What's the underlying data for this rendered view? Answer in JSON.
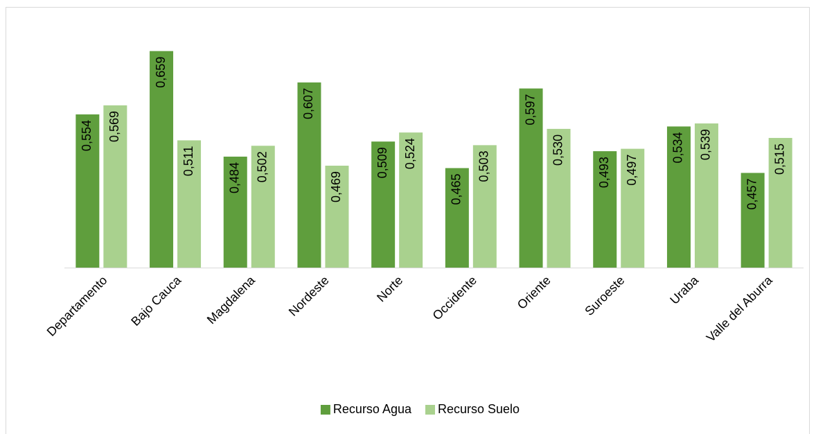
{
  "chart_data": {
    "type": "bar",
    "categories": [
      "Departamento",
      "Bajo Cauca",
      "Magdalena",
      "Nordeste",
      "Norte",
      "Occidente",
      "Oriente",
      "Suroeste",
      "Uraba",
      "Valle del Aburra"
    ],
    "series": [
      {
        "name": "Recurso Agua",
        "color": "#5f9e3d",
        "values": [
          0.554,
          0.659,
          0.484,
          0.607,
          0.509,
          0.465,
          0.597,
          0.493,
          0.534,
          0.457
        ],
        "value_labels": [
          "0,554",
          "0,659",
          "0,484",
          "0,607",
          "0,509",
          "0,465",
          "0,597",
          "0,493",
          "0,534",
          "0,457"
        ]
      },
      {
        "name": "Recurso Suelo",
        "color": "#a9d18e",
        "values": [
          0.569,
          0.511,
          0.502,
          0.469,
          0.524,
          0.503,
          0.53,
          0.497,
          0.539,
          0.515
        ],
        "value_labels": [
          "0,569",
          "0,511",
          "0,502",
          "0,469",
          "0,524",
          "0,503",
          "0,530",
          "0,497",
          "0,539",
          "0,515"
        ]
      }
    ],
    "ylim": [
      0.3,
      0.7
    ],
    "legend": "bottom"
  }
}
